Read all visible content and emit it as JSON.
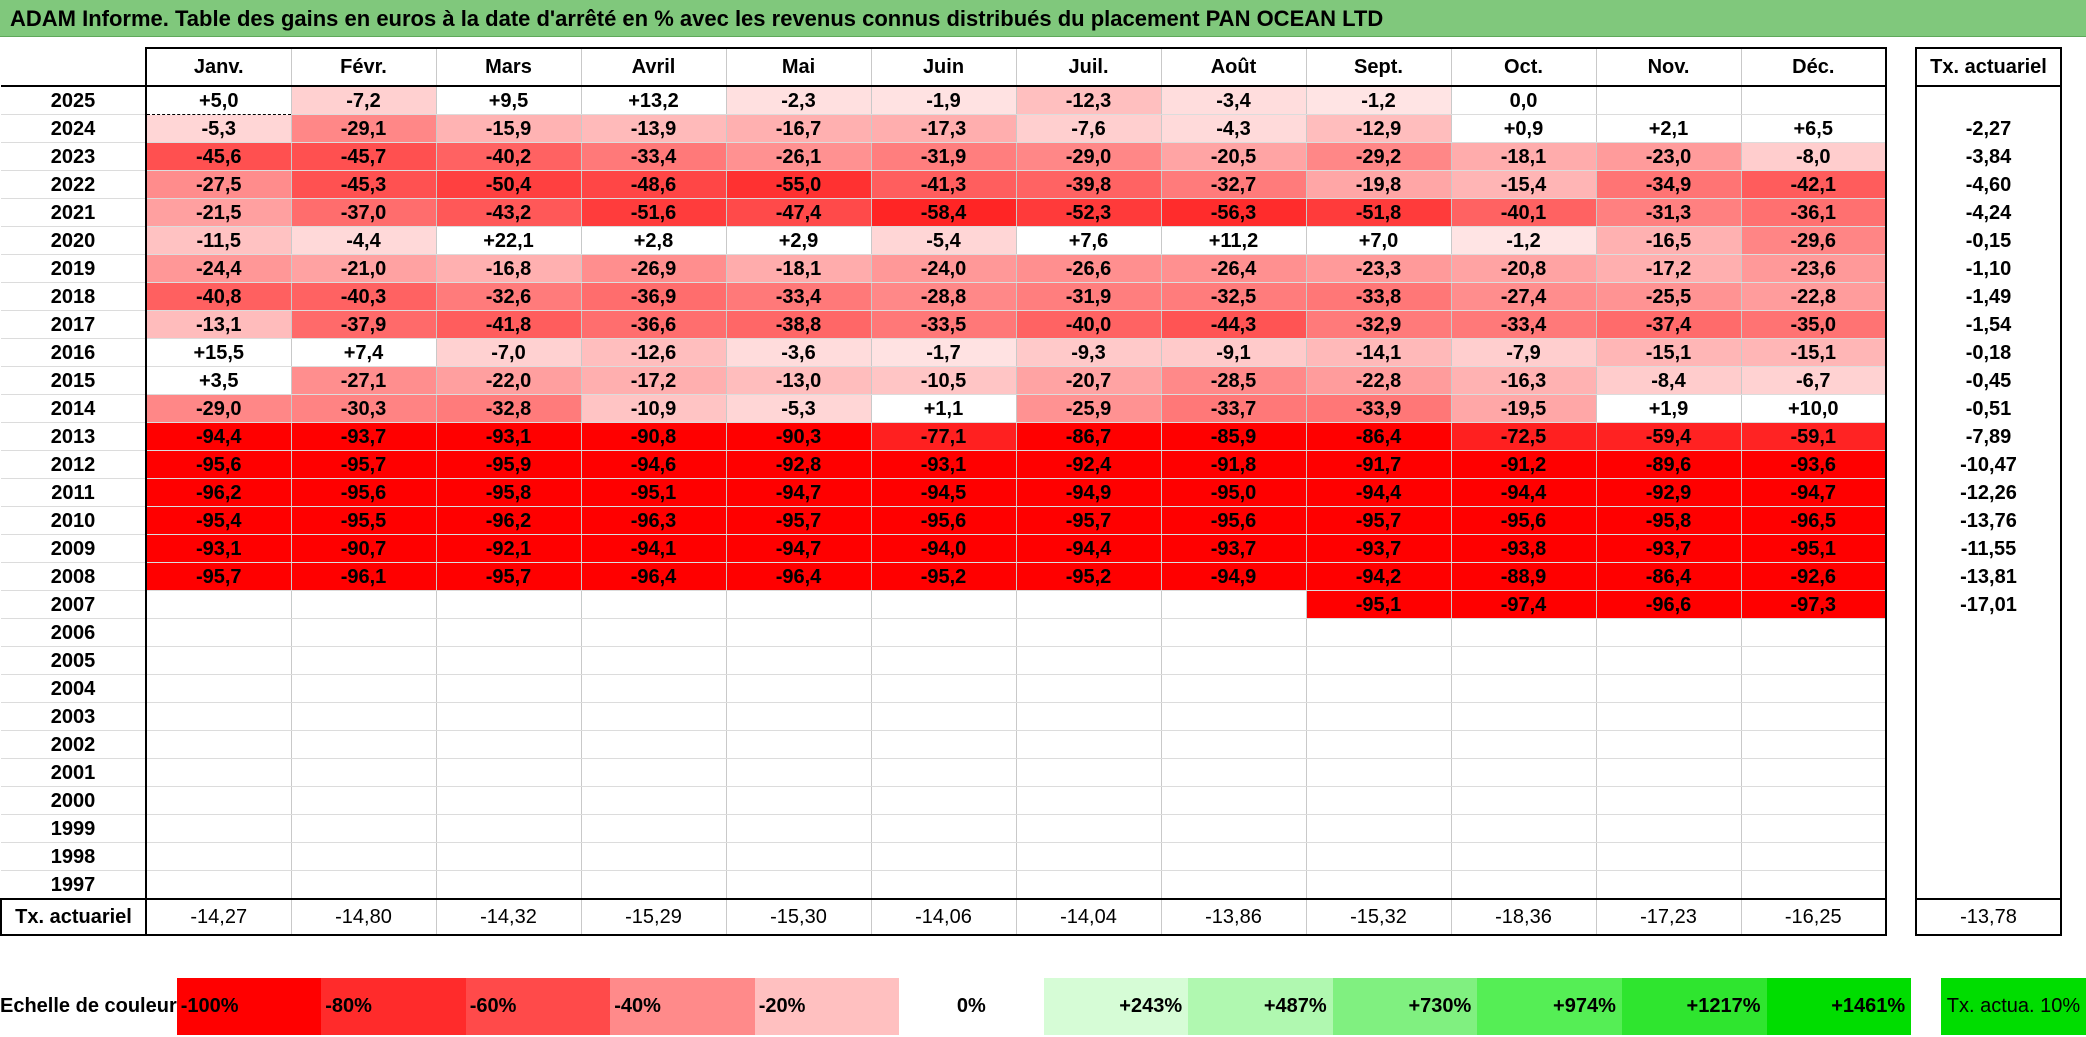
{
  "title": "ADAM Informe. Table des gains en euros à la date d'arrêté en % avec les revenus connus distribués du placement PAN OCEAN LTD",
  "months": [
    "Janv.",
    "Févr.",
    "Mars",
    "Avril",
    "Mai",
    "Juin",
    "Juil.",
    "Août",
    "Sept.",
    "Oct.",
    "Nov.",
    "Déc."
  ],
  "tx_header": "Tx. actuariel",
  "rows": [
    {
      "year": "2025",
      "v": [
        "+5,0",
        "-7,2",
        "+9,5",
        "+13,2",
        "-2,3",
        "-1,9",
        "-12,3",
        "-3,4",
        "-1,2",
        "0,0",
        "",
        ""
      ],
      "tx": ""
    },
    {
      "year": "2024",
      "v": [
        "-5,3",
        "-29,1",
        "-15,9",
        "-13,9",
        "-16,7",
        "-17,3",
        "-7,6",
        "-4,3",
        "-12,9",
        "+0,9",
        "+2,1",
        "+6,5"
      ],
      "tx": "-2,27"
    },
    {
      "year": "2023",
      "v": [
        "-45,6",
        "-45,7",
        "-40,2",
        "-33,4",
        "-26,1",
        "-31,9",
        "-29,0",
        "-20,5",
        "-29,2",
        "-18,1",
        "-23,0",
        "-8,0"
      ],
      "tx": "-3,84"
    },
    {
      "year": "2022",
      "v": [
        "-27,5",
        "-45,3",
        "-50,4",
        "-48,6",
        "-55,0",
        "-41,3",
        "-39,8",
        "-32,7",
        "-19,8",
        "-15,4",
        "-34,9",
        "-42,1"
      ],
      "tx": "-4,60"
    },
    {
      "year": "2021",
      "v": [
        "-21,5",
        "-37,0",
        "-43,2",
        "-51,6",
        "-47,4",
        "-58,4",
        "-52,3",
        "-56,3",
        "-51,8",
        "-40,1",
        "-31,3",
        "-36,1"
      ],
      "tx": "-4,24"
    },
    {
      "year": "2020",
      "v": [
        "-11,5",
        "-4,4",
        "+22,1",
        "+2,8",
        "+2,9",
        "-5,4",
        "+7,6",
        "+11,2",
        "+7,0",
        "-1,2",
        "-16,5",
        "-29,6"
      ],
      "tx": "-0,15"
    },
    {
      "year": "2019",
      "v": [
        "-24,4",
        "-21,0",
        "-16,8",
        "-26,9",
        "-18,1",
        "-24,0",
        "-26,6",
        "-26,4",
        "-23,3",
        "-20,8",
        "-17,2",
        "-23,6"
      ],
      "tx": "-1,10"
    },
    {
      "year": "2018",
      "v": [
        "-40,8",
        "-40,3",
        "-32,6",
        "-36,9",
        "-33,4",
        "-28,8",
        "-31,9",
        "-32,5",
        "-33,8",
        "-27,4",
        "-25,5",
        "-22,8"
      ],
      "tx": "-1,49"
    },
    {
      "year": "2017",
      "v": [
        "-13,1",
        "-37,9",
        "-41,8",
        "-36,6",
        "-38,8",
        "-33,5",
        "-40,0",
        "-44,3",
        "-32,9",
        "-33,4",
        "-37,4",
        "-35,0"
      ],
      "tx": "-1,54"
    },
    {
      "year": "2016",
      "v": [
        "+15,5",
        "+7,4",
        "-7,0",
        "-12,6",
        "-3,6",
        "-1,7",
        "-9,3",
        "-9,1",
        "-14,1",
        "-7,9",
        "-15,1",
        "-15,1"
      ],
      "tx": "-0,18"
    },
    {
      "year": "2015",
      "v": [
        "+3,5",
        "-27,1",
        "-22,0",
        "-17,2",
        "-13,0",
        "-10,5",
        "-20,7",
        "-28,5",
        "-22,8",
        "-16,3",
        "-8,4",
        "-6,7"
      ],
      "tx": "-0,45"
    },
    {
      "year": "2014",
      "v": [
        "-29,0",
        "-30,3",
        "-32,8",
        "-10,9",
        "-5,3",
        "+1,1",
        "-25,9",
        "-33,7",
        "-33,9",
        "-19,5",
        "+1,9",
        "+10,0"
      ],
      "tx": "-0,51"
    },
    {
      "year": "2013",
      "v": [
        "-94,4",
        "-93,7",
        "-93,1",
        "-90,8",
        "-90,3",
        "-77,1",
        "-86,7",
        "-85,9",
        "-86,4",
        "-72,5",
        "-59,4",
        "-59,1"
      ],
      "tx": "-7,89"
    },
    {
      "year": "2012",
      "v": [
        "-95,6",
        "-95,7",
        "-95,9",
        "-94,6",
        "-92,8",
        "-93,1",
        "-92,4",
        "-91,8",
        "-91,7",
        "-91,2",
        "-89,6",
        "-93,6"
      ],
      "tx": "-10,47"
    },
    {
      "year": "2011",
      "v": [
        "-96,2",
        "-95,6",
        "-95,8",
        "-95,1",
        "-94,7",
        "-94,5",
        "-94,9",
        "-95,0",
        "-94,4",
        "-94,4",
        "-92,9",
        "-94,7"
      ],
      "tx": "-12,26"
    },
    {
      "year": "2010",
      "v": [
        "-95,4",
        "-95,5",
        "-96,2",
        "-96,3",
        "-95,7",
        "-95,6",
        "-95,7",
        "-95,6",
        "-95,7",
        "-95,6",
        "-95,8",
        "-96,5"
      ],
      "tx": "-13,76"
    },
    {
      "year": "2009",
      "v": [
        "-93,1",
        "-90,7",
        "-92,1",
        "-94,1",
        "-94,7",
        "-94,0",
        "-94,4",
        "-93,7",
        "-93,7",
        "-93,8",
        "-93,7",
        "-95,1"
      ],
      "tx": "-11,55"
    },
    {
      "year": "2008",
      "v": [
        "-95,7",
        "-96,1",
        "-95,7",
        "-96,4",
        "-96,4",
        "-95,2",
        "-95,2",
        "-94,9",
        "-94,2",
        "-88,9",
        "-86,4",
        "-92,6"
      ],
      "tx": "-13,81"
    },
    {
      "year": "2007",
      "v": [
        "",
        "",
        "",
        "",
        "",
        "",
        "",
        "",
        "-95,1",
        "-97,4",
        "-96,6",
        "-97,3"
      ],
      "tx": "-17,01"
    },
    {
      "year": "2006",
      "v": [
        "",
        "",
        "",
        "",
        "",
        "",
        "",
        "",
        "",
        "",
        "",
        ""
      ],
      "tx": ""
    },
    {
      "year": "2005",
      "v": [
        "",
        "",
        "",
        "",
        "",
        "",
        "",
        "",
        "",
        "",
        "",
        ""
      ],
      "tx": ""
    },
    {
      "year": "2004",
      "v": [
        "",
        "",
        "",
        "",
        "",
        "",
        "",
        "",
        "",
        "",
        "",
        ""
      ],
      "tx": ""
    },
    {
      "year": "2003",
      "v": [
        "",
        "",
        "",
        "",
        "",
        "",
        "",
        "",
        "",
        "",
        "",
        ""
      ],
      "tx": ""
    },
    {
      "year": "2002",
      "v": [
        "",
        "",
        "",
        "",
        "",
        "",
        "",
        "",
        "",
        "",
        "",
        ""
      ],
      "tx": ""
    },
    {
      "year": "2001",
      "v": [
        "",
        "",
        "",
        "",
        "",
        "",
        "",
        "",
        "",
        "",
        "",
        ""
      ],
      "tx": ""
    },
    {
      "year": "2000",
      "v": [
        "",
        "",
        "",
        "",
        "",
        "",
        "",
        "",
        "",
        "",
        "",
        ""
      ],
      "tx": ""
    },
    {
      "year": "1999",
      "v": [
        "",
        "",
        "",
        "",
        "",
        "",
        "",
        "",
        "",
        "",
        "",
        ""
      ],
      "tx": ""
    },
    {
      "year": "1998",
      "v": [
        "",
        "",
        "",
        "",
        "",
        "",
        "",
        "",
        "",
        "",
        "",
        ""
      ],
      "tx": ""
    },
    {
      "year": "1997",
      "v": [
        "",
        "",
        "",
        "",
        "",
        "",
        "",
        "",
        "",
        "",
        "",
        ""
      ],
      "tx": ""
    }
  ],
  "tx_row": {
    "label": "Tx. actuariel",
    "v": [
      "-14,27",
      "-14,80",
      "-14,32",
      "-15,29",
      "-15,30",
      "-14,06",
      "-14,04",
      "-13,86",
      "-15,32",
      "-18,36",
      "-17,23",
      "-16,25"
    ],
    "tx": "-13,78"
  },
  "scale": {
    "label": "Echelle de couleur",
    "items": [
      {
        "text": "-100%",
        "color": "#ff0000"
      },
      {
        "text": "-80%",
        "color": "#ff2b2b"
      },
      {
        "text": "-60%",
        "color": "#ff4a4a"
      },
      {
        "text": "-40%",
        "color": "#ff8a8a"
      },
      {
        "text": "-20%",
        "color": "#ffc0c0"
      },
      {
        "text": "0%",
        "color": "#ffffff"
      },
      {
        "text": "+243%",
        "color": "#d6fcd6"
      },
      {
        "text": "+487%",
        "color": "#b0f8b0"
      },
      {
        "text": "+730%",
        "color": "#80f080"
      },
      {
        "text": "+974%",
        "color": "#55ee55"
      },
      {
        "text": "+1217%",
        "color": "#2fe52f"
      },
      {
        "text": "+1461%",
        "color": "#00dd00"
      }
    ],
    "tx_label": "Tx. actua. 10%",
    "tx_color": "#00dd00"
  },
  "colors": {
    "title_bg": "#80c87c"
  }
}
